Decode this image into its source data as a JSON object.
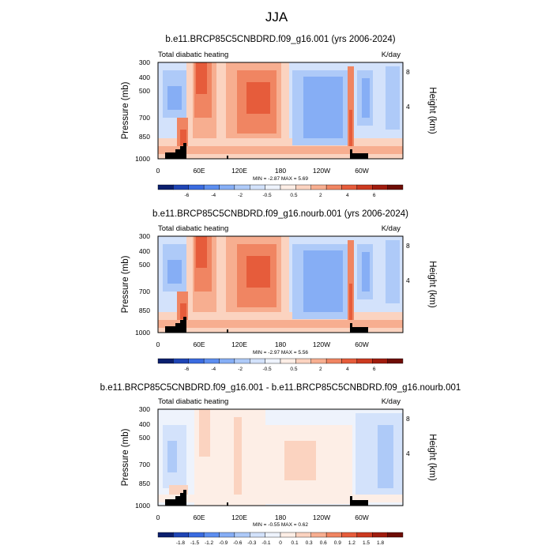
{
  "figure_title": "JJA",
  "colors": {
    "neg": [
      "#0b1f6e",
      "#1f45b5",
      "#3a6be0",
      "#5d8ef0",
      "#86aef5",
      "#aecaf8",
      "#d3e2fb",
      "#eef3fc"
    ],
    "pos": [
      "#fdeee6",
      "#fbd3c0",
      "#f7ae90",
      "#f08562",
      "#e65c3b",
      "#cc3a20",
      "#a01c0e",
      "#6e0d05"
    ],
    "terrain": "#000000"
  },
  "chart_data": [
    {
      "type": "heatmap",
      "title": "b.e11.BRCP85C5CNBDRD.f09_g16.001 (yrs 2006-2024)",
      "left_label": "Total diabatic heating",
      "right_label": "K/day",
      "ylabel": "Pressure (mb)",
      "y2label": "Height (km)",
      "yticks": [
        "300",
        "400",
        "500",
        "700",
        "850",
        "1000"
      ],
      "y2ticks": [
        "8",
        "4"
      ],
      "xticks": [
        "0",
        "60E",
        "120E",
        "180",
        "120W",
        "60W"
      ],
      "stats": "MIN = -2.87  MAX =  5.69",
      "colorbar_labels": [
        "-6",
        "-4",
        "-2",
        "-0.5",
        "0.5",
        "2",
        "4",
        "6"
      ],
      "xlim": [
        0,
        360
      ],
      "ylim": [
        1000,
        300
      ]
    },
    {
      "type": "heatmap",
      "title": "b.e11.BRCP85C5CNBDRD.f09_g16.nourb.001 (yrs 2006-2024)",
      "left_label": "Total diabatic heating",
      "right_label": "K/day",
      "ylabel": "Pressure (mb)",
      "y2label": "Height (km)",
      "yticks": [
        "300",
        "400",
        "500",
        "700",
        "850",
        "1000"
      ],
      "y2ticks": [
        "8",
        "4"
      ],
      "xticks": [
        "0",
        "60E",
        "120E",
        "180",
        "120W",
        "60W"
      ],
      "stats": "MIN = -2.97  MAX =  5.56",
      "colorbar_labels": [
        "-6",
        "-4",
        "-2",
        "-0.5",
        "0.5",
        "2",
        "4",
        "6"
      ],
      "xlim": [
        0,
        360
      ],
      "ylim": [
        1000,
        300
      ]
    },
    {
      "type": "heatmap",
      "title": "b.e11.BRCP85C5CNBDRD.f09_g16.001 - b.e11.BRCP85C5CNBDRD.f09_g16.nourb.001",
      "left_label": "Total diabatic heating",
      "right_label": "K/day",
      "ylabel": "Pressure (mb)",
      "y2label": "Height (km)",
      "yticks": [
        "300",
        "400",
        "500",
        "700",
        "850",
        "1000"
      ],
      "y2ticks": [
        "8",
        "4"
      ],
      "xticks": [
        "0",
        "60E",
        "120E",
        "180",
        "120W",
        "60W"
      ],
      "stats": "MIN = -0.55  MAX =  0.62",
      "colorbar_labels": [
        "-1.8",
        "-1.5",
        "-1.2",
        "-0.9",
        "-0.6",
        "-0.3",
        "-0.1",
        "0",
        "0.1",
        "0.3",
        "0.6",
        "0.9",
        "1.2",
        "1.5",
        "1.8"
      ],
      "xlim": [
        0,
        360
      ],
      "ylim": [
        1000,
        300
      ]
    }
  ]
}
